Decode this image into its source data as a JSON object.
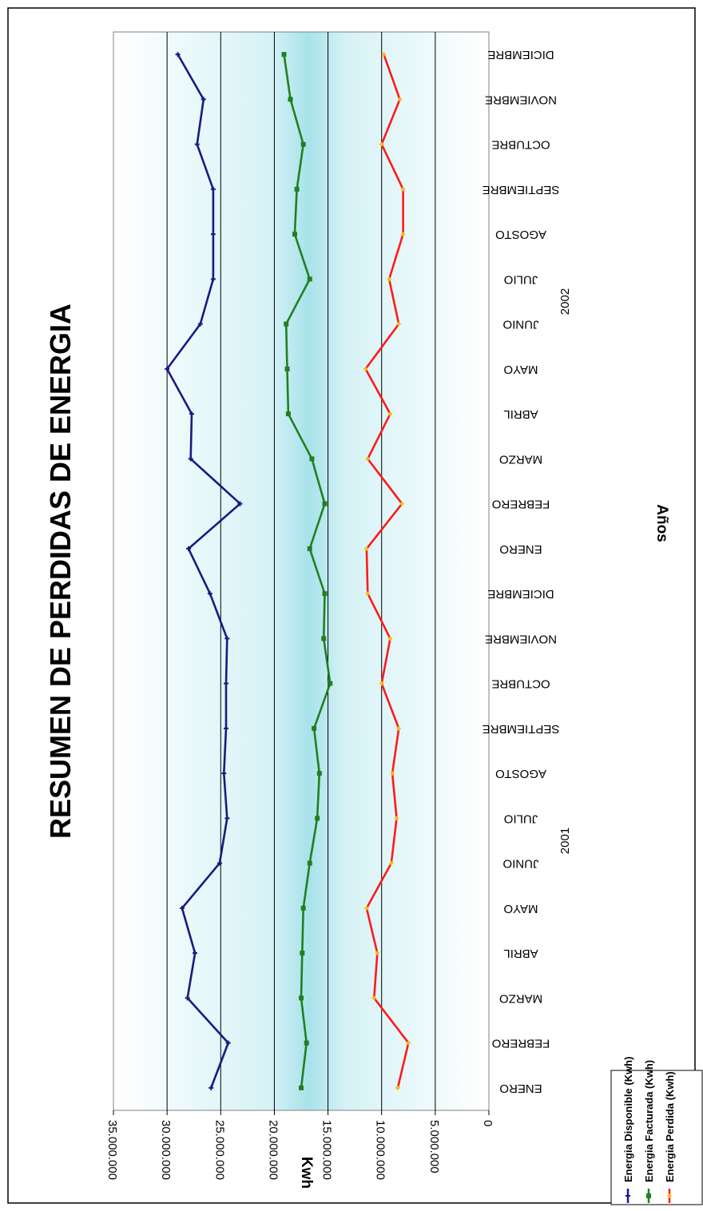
{
  "chart_data": {
    "type": "line",
    "title": "RESUMEN DE PERDIDAS DE ENERGIA",
    "xlabel": "Años",
    "ylabel": "Kwh",
    "ylim": [
      0,
      35000000
    ],
    "y_ticks": [
      0,
      5000000,
      10000000,
      15000000,
      20000000,
      25000000,
      30000000,
      35000000
    ],
    "y_tick_labels": [
      "0",
      "5.000.000",
      "10.000.000",
      "15.000.000",
      "20.000.000",
      "25.000.000",
      "30.000.000",
      "35.000.000"
    ],
    "grid": true,
    "orientation": "rotated 90 degrees clockwise",
    "legend_position": "bottom-left",
    "categories": [
      "ENERO",
      "FEBRERO",
      "MARZO",
      "ABRIL",
      "MAYO",
      "JUNIO",
      "JULIO",
      "AGOSTO",
      "SEPTIEMBRE",
      "OCTUBRE",
      "NOVIEMBRE",
      "DICIEMBRE",
      "ENERO",
      "FEBRERO",
      "MARZO",
      "ABRIL",
      "MAYO",
      "JUNIO",
      "JULIO",
      "AGOSTO",
      "SEPTIEMBRE",
      "OCTUBRE",
      "NOVIEMBRE",
      "DICIEMBRE"
    ],
    "year_groups": [
      {
        "label": "2001",
        "start": 0,
        "end": 11
      },
      {
        "label": "2002",
        "start": 12,
        "end": 23
      }
    ],
    "series": [
      {
        "name": "Energia Disponible (Kwh)",
        "color": "#1a1a80",
        "marker": "plus",
        "values": [
          25900000,
          24300000,
          28100000,
          27400000,
          28600000,
          25100000,
          24400000,
          24700000,
          24500000,
          24500000,
          24400000,
          26000000,
          28000000,
          23200000,
          27800000,
          27700000,
          30000000,
          26900000,
          25700000,
          25700000,
          25700000,
          27200000,
          26600000,
          29000000
        ]
      },
      {
        "name": "Energia Facturada (Kwh)",
        "color": "#208020",
        "marker": "square",
        "values": [
          17500000,
          17000000,
          17500000,
          17400000,
          17300000,
          16700000,
          16000000,
          15800000,
          16300000,
          14800000,
          15400000,
          15300000,
          16700000,
          15300000,
          16500000,
          18700000,
          18800000,
          18900000,
          16700000,
          18100000,
          17900000,
          17300000,
          18500000,
          19100000
        ]
      },
      {
        "name": "Energia Perdida (Kwh)",
        "color": "#ff1a1a",
        "marker": "diamond",
        "marker_color": "#f0c010",
        "values": [
          8500000,
          7500000,
          10700000,
          10400000,
          11400000,
          9100000,
          8600000,
          9000000,
          8400000,
          10000000,
          9200000,
          11300000,
          11400000,
          8100000,
          11300000,
          9200000,
          11500000,
          8400000,
          9300000,
          8000000,
          8000000,
          10000000,
          8300000,
          9800000
        ]
      }
    ]
  }
}
